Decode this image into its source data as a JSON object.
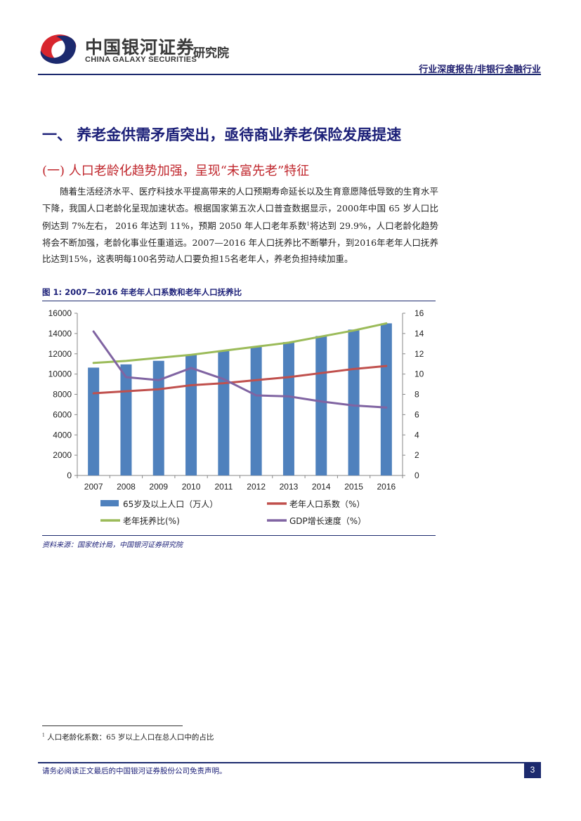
{
  "header": {
    "brand_cn": "中国银河证券",
    "brand_en": "CHINA GALAXY SECURITIES",
    "brand_institute": "研究院",
    "report_type": "行业深度报告/非银行金融行业"
  },
  "section": {
    "heading1": "一、 养老金供需矛盾突出，亟待商业养老保险发展提速",
    "heading2": "(一)  人口老龄化趋势加强，呈现“未富先老”特征",
    "para_a": "随着生活经济水平、医疗科技水平提高带来的人口预期寿命延长以及生育意愿降低导致的生育水平下降，我国人口老龄化呈现加速状态。根据国家第五次人口普查数据显示，2000年中国 65 岁人口比例达到 7%左右， 2016 年达到 11%，预期 2050 年人口老年系数",
    "para_sup": "1",
    "para_b": "将达到 29.9%，人口老龄化趋势将会不断加强，老龄化事业任重道远。2007—2016 年人口抚养比不断攀升，到2016年老年人口抚养比达到15%，这表明每100名劳动人口要负担15名老年人，养老负担持续加重。"
  },
  "figure": {
    "caption": "图 1: 2007—2016 年老年人口系数和老年人口抚养比",
    "source": "资料来源：国家统计局，中国银河证券研究院"
  },
  "chart_data": {
    "type": "bar",
    "categories": [
      "2007",
      "2008",
      "2009",
      "2010",
      "2011",
      "2012",
      "2013",
      "2014",
      "2015",
      "2016"
    ],
    "y_left": {
      "ylim": [
        0,
        16000
      ],
      "ticks": [
        "0",
        "2000",
        "4000",
        "6000",
        "8000",
        "10000",
        "12000",
        "14000",
        "16000"
      ]
    },
    "y_right": {
      "ylim": [
        0,
        16
      ],
      "ticks": [
        "0",
        "2",
        "4",
        "6",
        "8",
        "10",
        "12",
        "14",
        "16"
      ]
    },
    "grid": false,
    "legend_position": "bottom",
    "series": [
      {
        "name": "65岁及以上人口（万人）",
        "type": "bar",
        "axis": "left",
        "color": "#4f81bd",
        "values": [
          10636,
          10956,
          11307,
          11894,
          12288,
          12714,
          13161,
          13755,
          14386,
          15003
        ]
      },
      {
        "name": "老年人口系数（%）",
        "type": "line",
        "axis": "right",
        "color": "#c0504d",
        "values": [
          8.1,
          8.3,
          8.5,
          8.9,
          9.1,
          9.4,
          9.7,
          10.1,
          10.5,
          10.8
        ]
      },
      {
        "name": "老年抚养比(%)",
        "type": "line",
        "axis": "right",
        "color": "#9bbb59",
        "values": [
          11.1,
          11.3,
          11.6,
          11.9,
          12.3,
          12.7,
          13.1,
          13.7,
          14.3,
          15.0
        ]
      },
      {
        "name": "GDP增长速度（%）",
        "type": "line",
        "axis": "right",
        "color": "#8064a2",
        "values": [
          14.2,
          9.7,
          9.4,
          10.6,
          9.5,
          7.9,
          7.8,
          7.3,
          6.9,
          6.7
        ]
      }
    ]
  },
  "footnote": {
    "mark": "1",
    "text": " 人口老龄化系数：65 岁以上人口在总人口中的占比"
  },
  "footer": {
    "disclaimer": "请务必阅读正文最后的中国银河证券股份公司免责声明。",
    "page": "3"
  }
}
